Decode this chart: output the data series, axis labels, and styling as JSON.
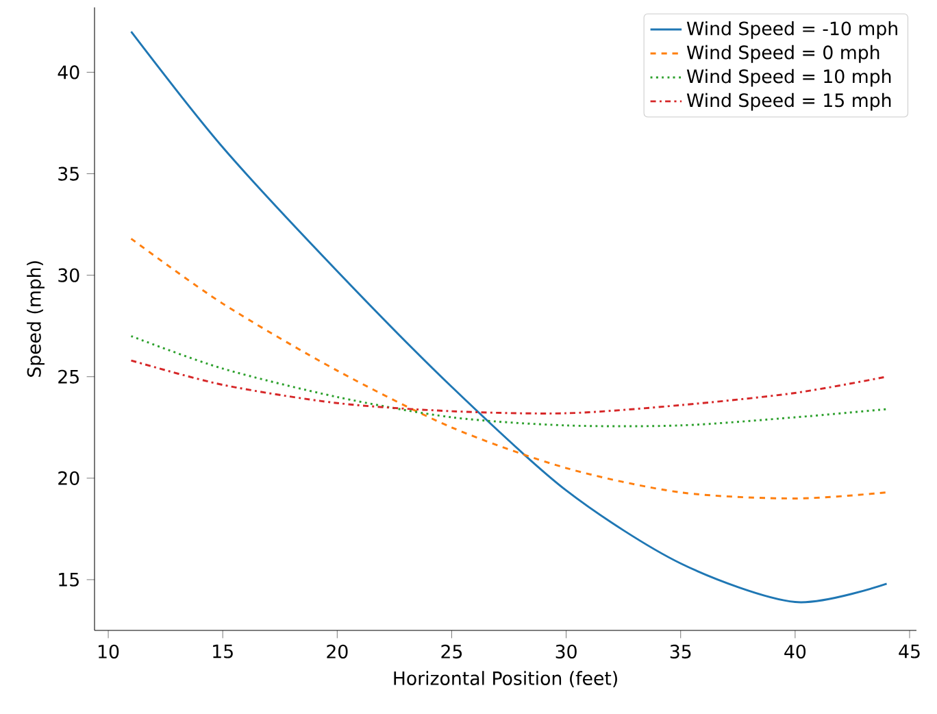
{
  "chart_data": {
    "type": "line",
    "xlabel": "Horizontal Position (feet)",
    "ylabel": "Speed (mph)",
    "x": [
      11,
      15,
      20,
      25,
      30,
      35,
      40,
      44
    ],
    "series": [
      {
        "name": "Wind Speed = -10 mph",
        "color": "#1f77b4",
        "line_style": "solid",
        "values": [
          42.0,
          36.3,
          30.2,
          24.5,
          19.4,
          15.8,
          13.9,
          14.8
        ]
      },
      {
        "name": "Wind Speed = 0 mph",
        "color": "#ff7f0e",
        "line_style": "dashed",
        "values": [
          31.8,
          28.6,
          25.3,
          22.5,
          20.5,
          19.3,
          19.0,
          19.3
        ]
      },
      {
        "name": "Wind Speed = 10 mph",
        "color": "#2ca02c",
        "line_style": "dotted",
        "values": [
          27.0,
          25.4,
          24.0,
          23.0,
          22.6,
          22.6,
          23.0,
          23.4
        ]
      },
      {
        "name": "Wind Speed = 15 mph",
        "color": "#d62728",
        "line_style": "dashdot",
        "values": [
          25.8,
          24.6,
          23.7,
          23.3,
          23.2,
          23.6,
          24.2,
          25.0
        ]
      }
    ],
    "xlim": [
      9.4,
      45.3
    ],
    "ylim": [
      12.5,
      43.2
    ],
    "xticks": [
      10,
      15,
      20,
      25,
      30,
      35,
      40,
      45
    ],
    "yticks": [
      15,
      20,
      25,
      30,
      35,
      40
    ],
    "legend": "top right",
    "grid": false,
    "marker": "none"
  }
}
